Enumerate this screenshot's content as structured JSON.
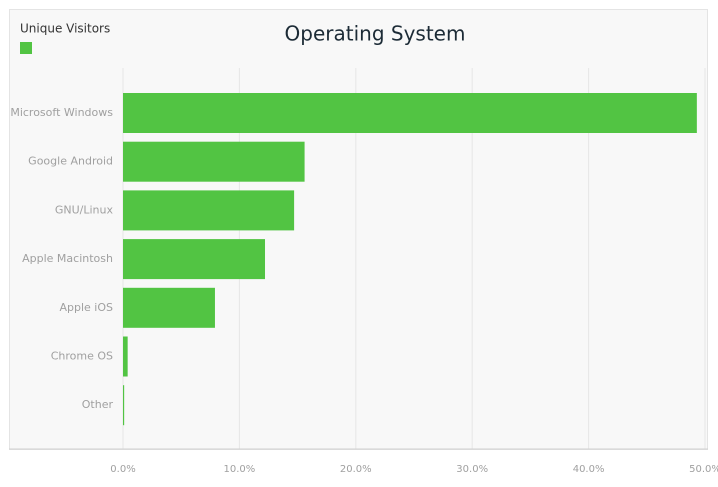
{
  "chart_data": {
    "type": "hbar",
    "title": "Operating System",
    "categories": [
      "Microsoft Windows",
      "Google Android",
      "GNU/Linux",
      "Apple Macintosh",
      "Apple iOS",
      "Chrome OS",
      "Other"
    ],
    "series": [
      {
        "name": "Unique Visitors",
        "color": "#52c443",
        "values": [
          49.3,
          15.6,
          14.7,
          12.2,
          7.9,
          0.4,
          0.1
        ]
      }
    ],
    "xlim": [
      0,
      50
    ],
    "xticks": [
      {
        "value": 0,
        "label": "0.0%"
      },
      {
        "value": 10,
        "label": "10.0%"
      },
      {
        "value": 20,
        "label": "20.0%"
      },
      {
        "value": 30,
        "label": "30.0%"
      },
      {
        "value": 40,
        "label": "40.0%"
      },
      {
        "value": 50,
        "label": "50.0%"
      }
    ],
    "grid": true,
    "legend": "top-left"
  }
}
